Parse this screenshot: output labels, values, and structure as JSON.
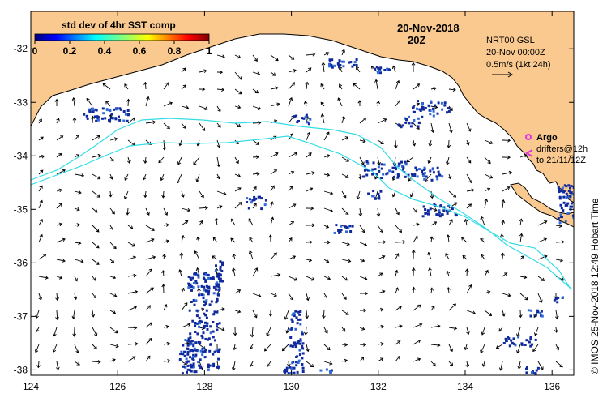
{
  "colorbar": {
    "title": "std dev of 4hr SST comp",
    "ticks": [
      "0",
      "0.2",
      "0.4",
      "0.6",
      "0.8",
      "1"
    ],
    "range": [
      0,
      1
    ]
  },
  "header": {
    "date": "20-Nov-2018",
    "time": "20Z"
  },
  "info": {
    "line1": "NRT00 GSL",
    "line2": "20-Nov 00:00Z",
    "line3": "0.5m/s (1kt 24h)"
  },
  "argo": {
    "label": "Argo",
    "drifters_line1": "drifters@12h",
    "drifters_line2": "to 21/11/12Z"
  },
  "credit": "© IMOS 25-Nov-2018 12:49 Hobart Time",
  "axes": {
    "lon_ticks": [
      "124",
      "126",
      "128",
      "130",
      "132",
      "134",
      "136"
    ],
    "lat_ticks": [
      "-32",
      "-33",
      "-34",
      "-35",
      "-36",
      "-37",
      "-38"
    ],
    "lon_range": [
      124,
      136.5
    ],
    "lat_range": [
      -38.1,
      -31.3
    ]
  },
  "colors": {
    "land": "#fac990",
    "sea": "#ffffff",
    "cyan_track": "#33dde6",
    "sst_blue": "#102a9e",
    "argo_magenta": "#e233e2"
  }
}
